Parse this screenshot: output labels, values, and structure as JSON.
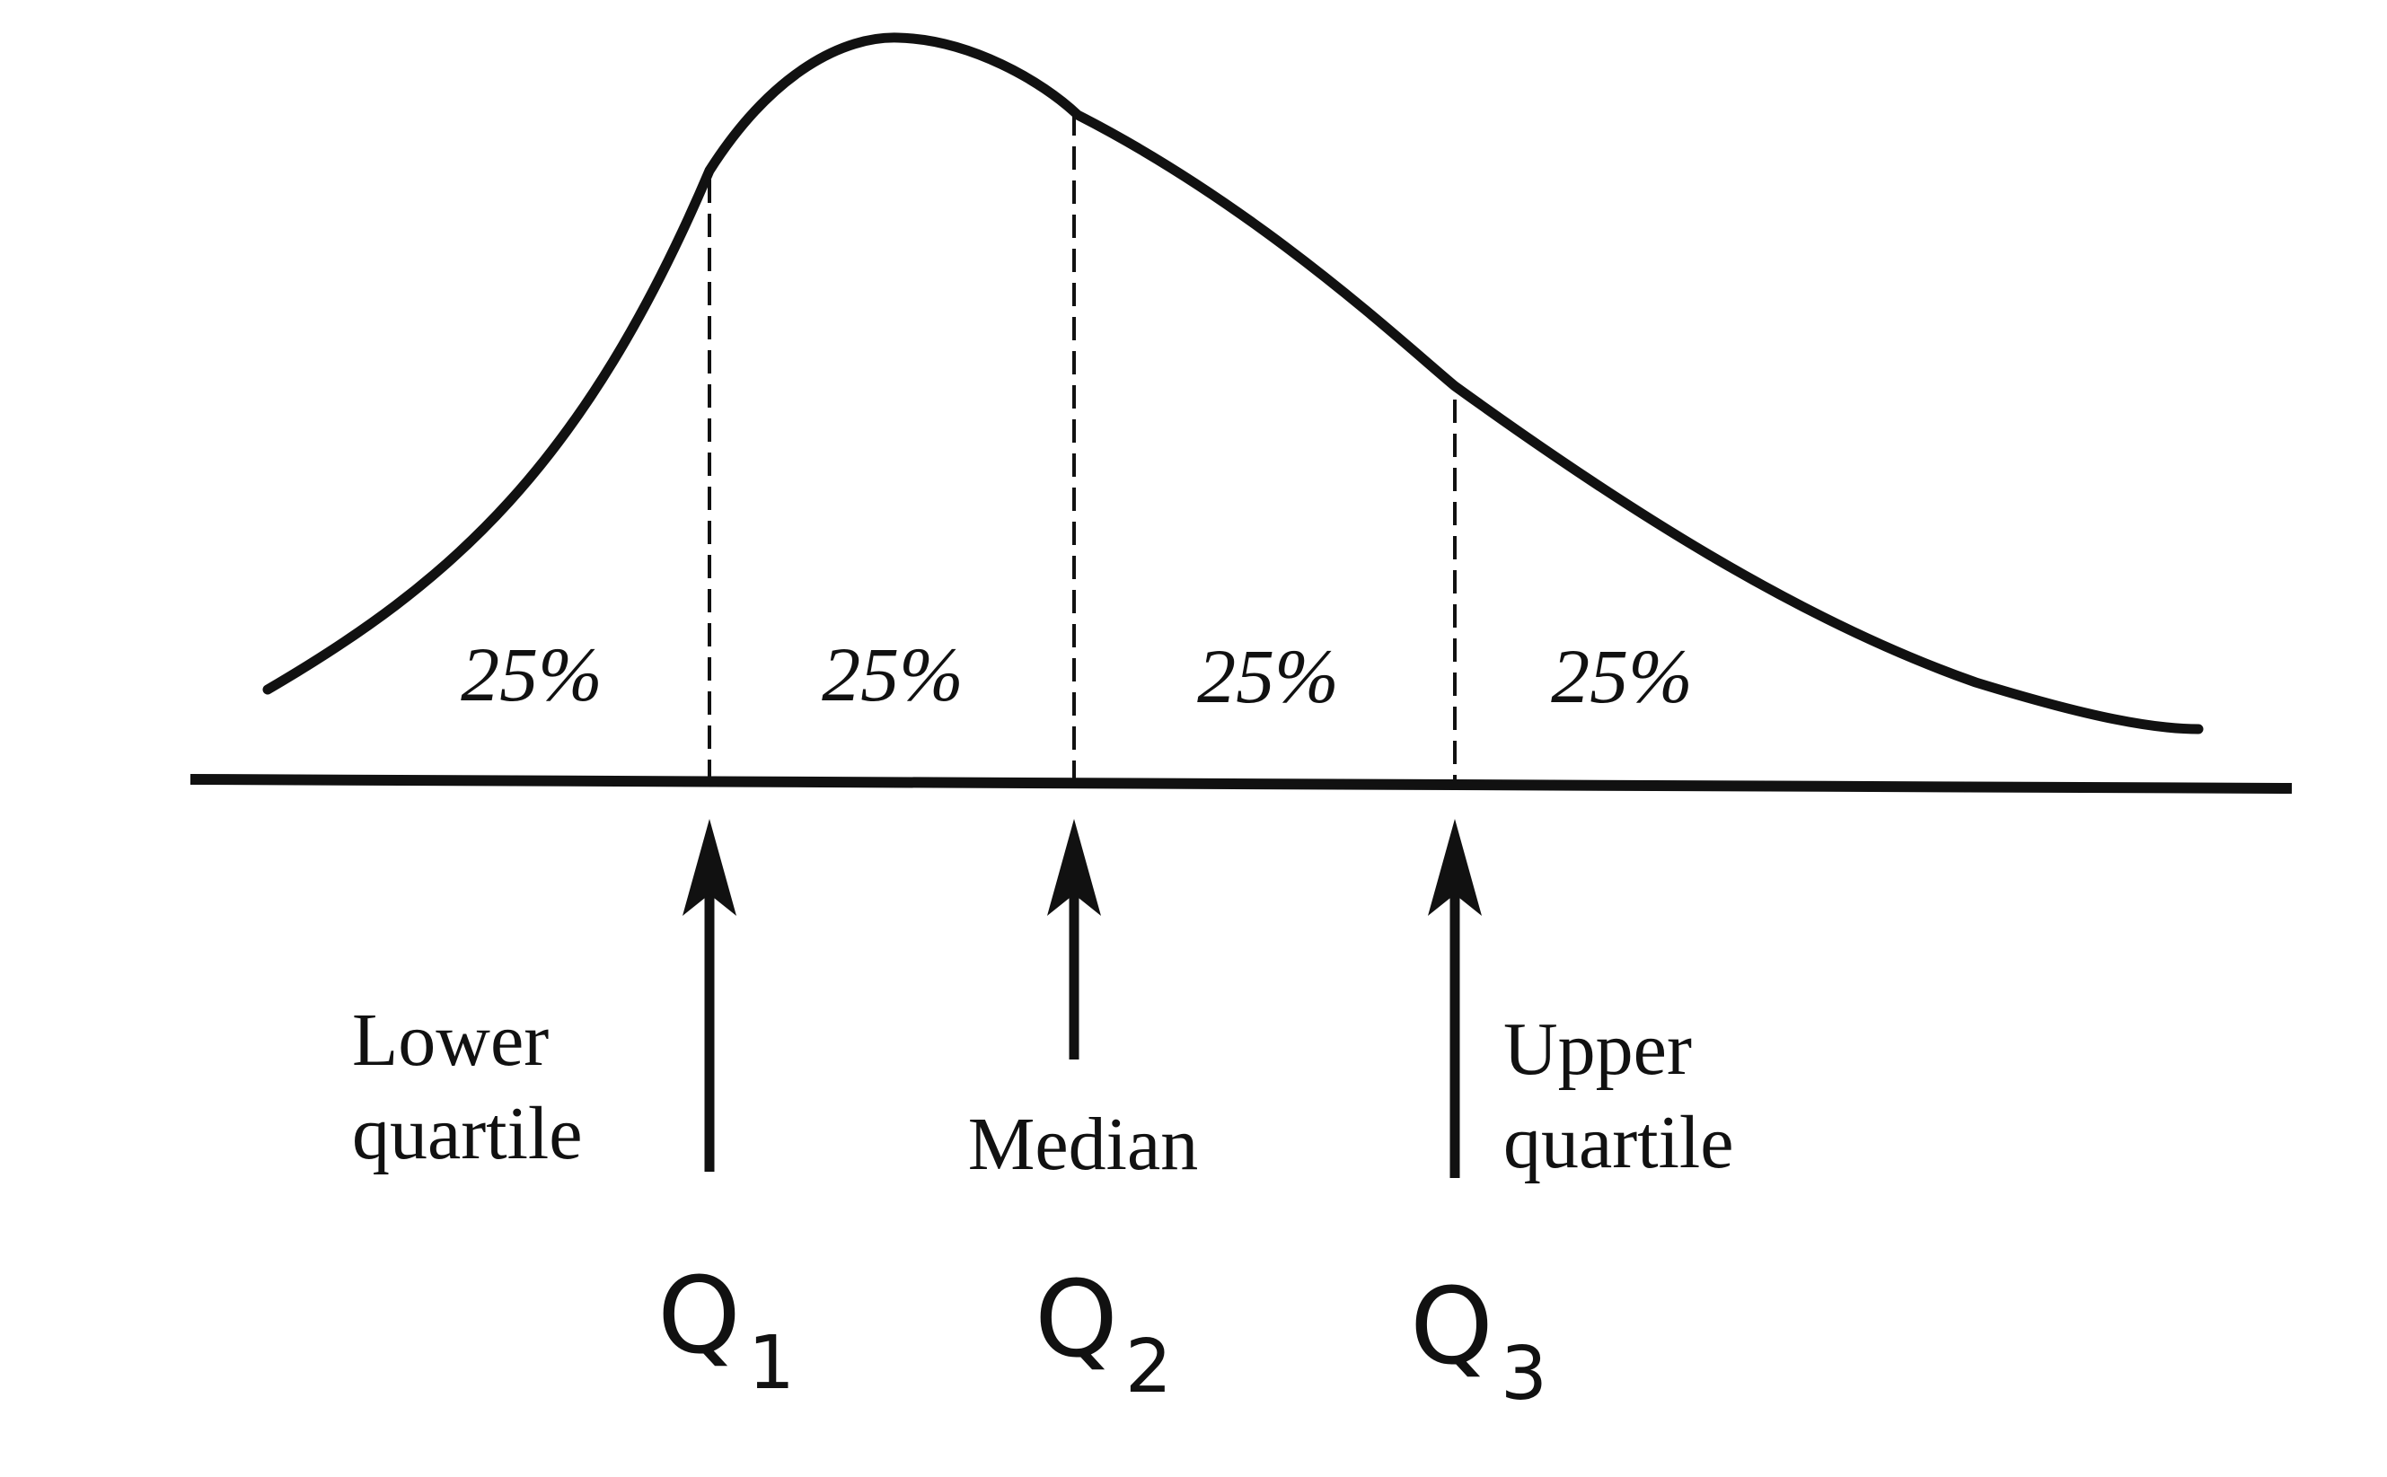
{
  "percentages": [
    "25%",
    "25%",
    "25%",
    "25%"
  ],
  "labels": {
    "lower_quartile_line1": "Lower",
    "lower_quartile_line2": "quartile",
    "median": "Median",
    "upper_quartile_line1": "Upper",
    "upper_quartile_line2": "quartile"
  },
  "quartiles": [
    {
      "symbol": "Q",
      "subscript": "1"
    },
    {
      "symbol": "Q",
      "subscript": "2"
    },
    {
      "symbol": "Q",
      "subscript": "3"
    }
  ],
  "colors": {
    "ink": "#111111",
    "background": "#ffffff"
  }
}
